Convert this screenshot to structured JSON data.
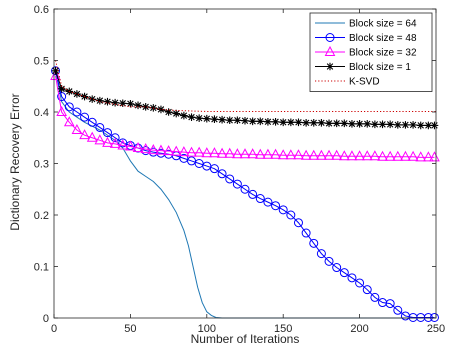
{
  "chart_data": {
    "type": "line",
    "xlabel": "Number of Iterations",
    "ylabel": "Dictionary Recovery Error",
    "xlim": [
      0,
      250
    ],
    "ylim": [
      0,
      0.6
    ],
    "xticks": [
      0,
      50,
      100,
      150,
      200,
      250
    ],
    "yticks": [
      0,
      0.1,
      0.2,
      0.3,
      0.4,
      0.5,
      0.6
    ],
    "xtick_labels": [
      "0",
      "50",
      "100",
      "150",
      "200",
      "250"
    ],
    "ytick_labels": [
      "0",
      "0.1",
      "0.2",
      "0.3",
      "0.4",
      "0.5",
      "0.6"
    ],
    "grid": false,
    "legend_position": "top-right",
    "series": [
      {
        "name": "Block size = 64",
        "color": "#1f78b4",
        "marker": "none",
        "line": "solid",
        "x": [
          1,
          5,
          10,
          20,
          30,
          40,
          45,
          50,
          55,
          60,
          65,
          70,
          75,
          80,
          85,
          88,
          91,
          94,
          97,
          100,
          103,
          106,
          110,
          130,
          150,
          200,
          250
        ],
        "y": [
          0.48,
          0.42,
          0.4,
          0.38,
          0.365,
          0.345,
          0.33,
          0.305,
          0.285,
          0.275,
          0.265,
          0.25,
          0.23,
          0.205,
          0.17,
          0.14,
          0.1,
          0.06,
          0.03,
          0.012,
          0.005,
          0.001,
          0.0,
          0.0,
          0.0,
          0.0,
          0.0
        ]
      },
      {
        "name": "Block size = 48",
        "color": "#0000ff",
        "marker": "circle",
        "line": "solid",
        "x": [
          1,
          5,
          10,
          15,
          20,
          25,
          30,
          35,
          40,
          45,
          50,
          55,
          60,
          65,
          70,
          75,
          80,
          85,
          90,
          95,
          100,
          105,
          110,
          115,
          120,
          125,
          130,
          135,
          140,
          145,
          150,
          155,
          160,
          165,
          170,
          175,
          180,
          185,
          190,
          195,
          200,
          205,
          210,
          215,
          220,
          225,
          230,
          235,
          240,
          245,
          249
        ],
        "y": [
          0.48,
          0.43,
          0.41,
          0.4,
          0.39,
          0.38,
          0.37,
          0.36,
          0.35,
          0.34,
          0.335,
          0.33,
          0.325,
          0.322,
          0.32,
          0.318,
          0.315,
          0.31,
          0.305,
          0.3,
          0.295,
          0.29,
          0.28,
          0.27,
          0.26,
          0.25,
          0.24,
          0.232,
          0.225,
          0.218,
          0.21,
          0.2,
          0.185,
          0.165,
          0.145,
          0.125,
          0.11,
          0.098,
          0.088,
          0.078,
          0.068,
          0.055,
          0.04,
          0.03,
          0.028,
          0.015,
          0.004,
          0.001,
          0.001,
          0.001,
          0.001
        ]
      },
      {
        "name": "Block size = 32",
        "color": "#ff00ff",
        "marker": "triangle",
        "line": "solid",
        "x": [
          1,
          5,
          10,
          15,
          20,
          25,
          30,
          35,
          40,
          45,
          50,
          55,
          60,
          65,
          70,
          75,
          80,
          85,
          90,
          95,
          100,
          105,
          110,
          115,
          120,
          125,
          130,
          135,
          140,
          145,
          150,
          155,
          160,
          165,
          170,
          175,
          180,
          185,
          190,
          195,
          200,
          205,
          210,
          215,
          220,
          225,
          230,
          235,
          240,
          245,
          249
        ],
        "y": [
          0.47,
          0.4,
          0.38,
          0.365,
          0.355,
          0.35,
          0.345,
          0.34,
          0.338,
          0.335,
          0.333,
          0.33,
          0.328,
          0.326,
          0.325,
          0.324,
          0.323,
          0.322,
          0.321,
          0.321,
          0.32,
          0.32,
          0.319,
          0.319,
          0.318,
          0.318,
          0.318,
          0.317,
          0.317,
          0.317,
          0.316,
          0.316,
          0.316,
          0.315,
          0.315,
          0.315,
          0.315,
          0.315,
          0.314,
          0.314,
          0.314,
          0.314,
          0.314,
          0.313,
          0.313,
          0.313,
          0.313,
          0.313,
          0.312,
          0.312,
          0.312
        ]
      },
      {
        "name": "Block size = 1",
        "color": "#000000",
        "marker": "star",
        "line": "solid",
        "x": [
          1,
          5,
          10,
          15,
          20,
          25,
          30,
          35,
          40,
          45,
          50,
          55,
          60,
          65,
          70,
          75,
          80,
          85,
          90,
          95,
          100,
          105,
          110,
          115,
          120,
          125,
          130,
          135,
          140,
          145,
          150,
          155,
          160,
          165,
          170,
          175,
          180,
          185,
          190,
          195,
          200,
          205,
          210,
          215,
          220,
          225,
          230,
          235,
          240,
          245,
          249
        ],
        "y": [
          0.48,
          0.445,
          0.44,
          0.435,
          0.43,
          0.425,
          0.422,
          0.42,
          0.418,
          0.417,
          0.416,
          0.413,
          0.41,
          0.408,
          0.405,
          0.4,
          0.397,
          0.393,
          0.39,
          0.388,
          0.387,
          0.386,
          0.385,
          0.384,
          0.384,
          0.383,
          0.382,
          0.382,
          0.381,
          0.381,
          0.38,
          0.38,
          0.38,
          0.379,
          0.379,
          0.379,
          0.378,
          0.378,
          0.378,
          0.377,
          0.377,
          0.377,
          0.376,
          0.376,
          0.376,
          0.375,
          0.375,
          0.375,
          0.374,
          0.374,
          0.374
        ]
      },
      {
        "name": "K-SVD",
        "color": "#cc0000",
        "marker": "none",
        "line": "dotted",
        "x": [
          1,
          5,
          10,
          20,
          30,
          40,
          50,
          60,
          70,
          80,
          90,
          100,
          150,
          200,
          250
        ],
        "y": [
          0.5,
          0.45,
          0.44,
          0.43,
          0.42,
          0.415,
          0.41,
          0.41,
          0.405,
          0.403,
          0.402,
          0.401,
          0.401,
          0.401,
          0.401
        ]
      }
    ]
  }
}
